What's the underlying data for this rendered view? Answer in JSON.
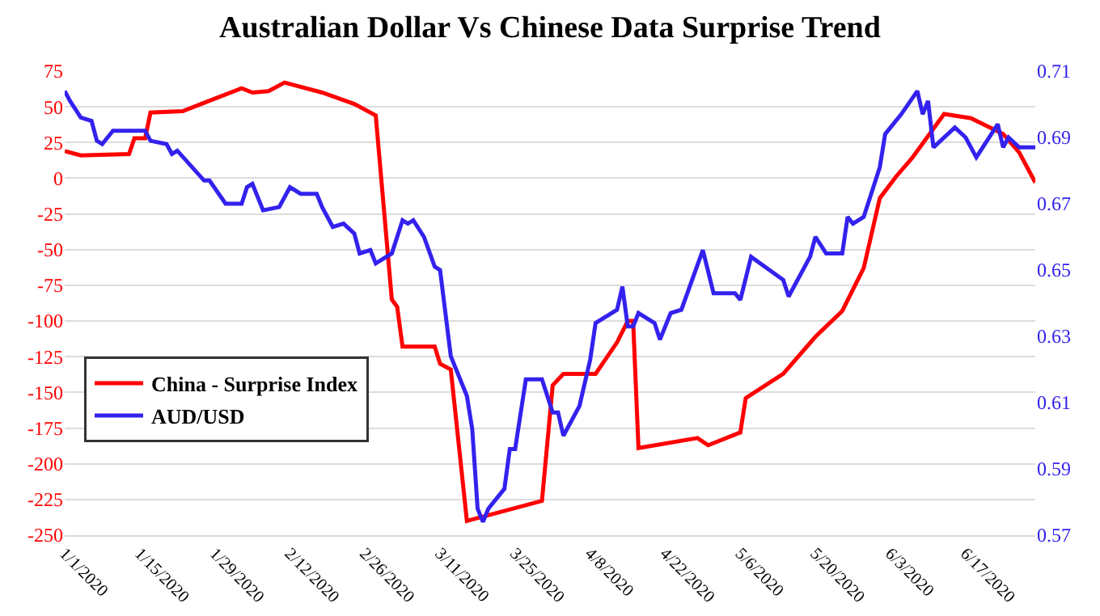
{
  "chart_data": {
    "type": "line",
    "title": "Australian Dollar Vs Chinese Data Surprise Trend",
    "xlim": [
      "2020-01-01",
      "2020-06-30"
    ],
    "xticks": [
      {
        "value": "2020-01-01",
        "label": "1/1/2020"
      },
      {
        "value": "2020-01-15",
        "label": "1/15/2020"
      },
      {
        "value": "2020-01-29",
        "label": "1/29/2020"
      },
      {
        "value": "2020-02-12",
        "label": "2/12/2020"
      },
      {
        "value": "2020-02-26",
        "label": "2/26/2020"
      },
      {
        "value": "2020-03-11",
        "label": "3/11/2020"
      },
      {
        "value": "2020-03-25",
        "label": "3/25/2020"
      },
      {
        "value": "2020-04-08",
        "label": "4/8/2020"
      },
      {
        "value": "2020-04-22",
        "label": "4/22/2020"
      },
      {
        "value": "2020-05-06",
        "label": "5/6/2020"
      },
      {
        "value": "2020-05-20",
        "label": "5/20/2020"
      },
      {
        "value": "2020-06-03",
        "label": "6/3/2020"
      },
      {
        "value": "2020-06-17",
        "label": "6/17/2020"
      }
    ],
    "ylim": [
      -250,
      75
    ],
    "yticks": [
      -250,
      -225,
      -200,
      -175,
      -150,
      -125,
      -100,
      -75,
      -50,
      -25,
      0,
      25,
      50,
      75
    ],
    "y2lim": [
      0.57,
      0.71
    ],
    "y2ticks": [
      0.57,
      0.59,
      0.61,
      0.63,
      0.65,
      0.67,
      0.69,
      0.71
    ],
    "grid": "y",
    "legend": "bottom left",
    "line_style": "solid",
    "marker": "none",
    "series": [
      {
        "name": "China - Surprise Index",
        "color": "#ff0000",
        "x": [
          "2020-01-01",
          "2020-01-04",
          "2020-01-13",
          "2020-01-14",
          "2020-01-16",
          "2020-01-17",
          "2020-01-23",
          "2020-02-03",
          "2020-02-05",
          "2020-02-08",
          "2020-02-11",
          "2020-02-18",
          "2020-02-24",
          "2020-02-28",
          "2020-03-02",
          "2020-03-03",
          "2020-03-04",
          "2020-03-10",
          "2020-03-11",
          "2020-03-13",
          "2020-03-16",
          "2020-03-30",
          "2020-04-01",
          "2020-04-03",
          "2020-04-09",
          "2020-04-13",
          "2020-04-15",
          "2020-04-16",
          "2020-04-17",
          "2020-04-28",
          "2020-04-30",
          "2020-05-06",
          "2020-05-07",
          "2020-05-14",
          "2020-05-20",
          "2020-05-25",
          "2020-05-29",
          "2020-06-01",
          "2020-06-04",
          "2020-06-07",
          "2020-06-13",
          "2020-06-18",
          "2020-06-24",
          "2020-06-27",
          "2020-06-30"
        ],
        "values": [
          19,
          16,
          17,
          28,
          28,
          46,
          47,
          63,
          60,
          61,
          67,
          60,
          52,
          44,
          -85,
          -90,
          -118,
          -118,
          -130,
          -134,
          -240,
          -226,
          -145,
          -137,
          -137,
          -115,
          -100,
          -100,
          -189,
          -182,
          -187,
          -178,
          -154,
          -137,
          -111,
          -93,
          -63,
          -14,
          1,
          14,
          45,
          42,
          31,
          18,
          -3
        ]
      },
      {
        "name": "AUD/USD",
        "color": "#3322ee",
        "axis": "y2",
        "x": [
          "2020-01-01",
          "2020-01-02",
          "2020-01-04",
          "2020-01-06",
          "2020-01-07",
          "2020-01-08",
          "2020-01-10",
          "2020-01-16",
          "2020-01-17",
          "2020-01-20",
          "2020-01-21",
          "2020-01-22",
          "2020-01-27",
          "2020-01-28",
          "2020-01-31",
          "2020-02-03",
          "2020-02-04",
          "2020-02-05",
          "2020-02-07",
          "2020-02-10",
          "2020-02-12",
          "2020-02-14",
          "2020-02-17",
          "2020-02-18",
          "2020-02-20",
          "2020-02-22",
          "2020-02-24",
          "2020-02-25",
          "2020-02-27",
          "2020-02-28",
          "2020-03-02",
          "2020-03-04",
          "2020-03-05",
          "2020-03-06",
          "2020-03-08",
          "2020-03-10",
          "2020-03-11",
          "2020-03-13",
          "2020-03-16",
          "2020-03-17",
          "2020-03-18",
          "2020-03-19",
          "2020-03-20",
          "2020-03-23",
          "2020-03-24",
          "2020-03-25",
          "2020-03-27",
          "2020-03-30",
          "2020-04-01",
          "2020-04-02",
          "2020-04-03",
          "2020-04-06",
          "2020-04-08",
          "2020-04-09",
          "2020-04-13",
          "2020-04-14",
          "2020-04-15",
          "2020-04-16",
          "2020-04-17",
          "2020-04-20",
          "2020-04-21",
          "2020-04-23",
          "2020-04-25",
          "2020-04-29",
          "2020-05-01",
          "2020-05-05",
          "2020-05-06",
          "2020-05-08",
          "2020-05-14",
          "2020-05-15",
          "2020-05-19",
          "2020-05-20",
          "2020-05-22",
          "2020-05-25",
          "2020-05-26",
          "2020-05-27",
          "2020-05-29",
          "2020-06-01",
          "2020-06-02",
          "2020-06-05",
          "2020-06-08",
          "2020-06-09",
          "2020-06-10",
          "2020-06-11",
          "2020-06-15",
          "2020-06-17",
          "2020-06-19",
          "2020-06-23",
          "2020-06-24",
          "2020-06-25",
          "2020-06-27",
          "2020-06-30"
        ],
        "values": [
          0.704,
          0.701,
          0.696,
          0.695,
          0.689,
          0.688,
          0.692,
          0.692,
          0.689,
          0.688,
          0.685,
          0.686,
          0.677,
          0.677,
          0.67,
          0.67,
          0.675,
          0.676,
          0.668,
          0.669,
          0.675,
          0.673,
          0.673,
          0.669,
          0.663,
          0.664,
          0.661,
          0.655,
          0.656,
          0.652,
          0.655,
          0.665,
          0.664,
          0.665,
          0.66,
          0.651,
          0.65,
          0.624,
          0.612,
          0.602,
          0.578,
          0.574,
          0.578,
          0.584,
          0.596,
          0.596,
          0.617,
          0.617,
          0.607,
          0.607,
          0.6,
          0.609,
          0.623,
          0.634,
          0.638,
          0.645,
          0.633,
          0.633,
          0.637,
          0.634,
          0.629,
          0.637,
          0.638,
          0.656,
          0.643,
          0.643,
          0.641,
          0.654,
          0.647,
          0.642,
          0.654,
          0.66,
          0.655,
          0.655,
          0.666,
          0.664,
          0.666,
          0.681,
          0.691,
          0.697,
          0.704,
          0.697,
          0.701,
          0.687,
          0.693,
          0.69,
          0.684,
          0.694,
          0.687,
          0.69,
          0.687,
          0.687
        ]
      }
    ]
  }
}
